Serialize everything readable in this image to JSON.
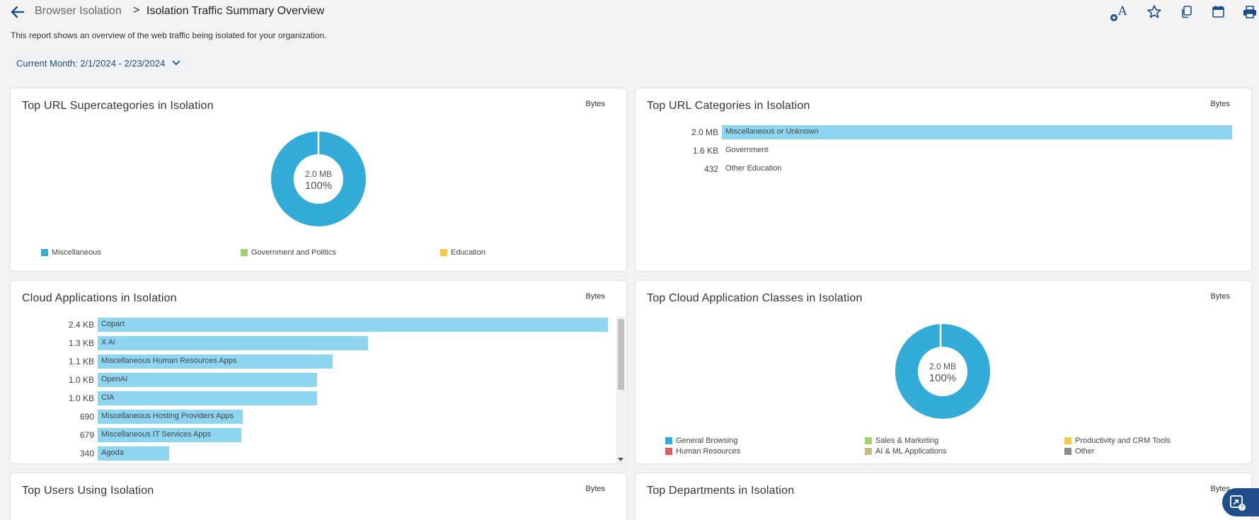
{
  "header": {
    "breadcrumb_parent": "Browser Isolation",
    "breadcrumb_separator": ">",
    "title": "Isolation Traffic Summary Overview",
    "description": "This report shows an overview of the web traffic being isolated for your organization.",
    "date_range": "Current Month: 2/1/2024 - 2/23/2024",
    "toolbar_icons": [
      "font-size-icon",
      "star-icon",
      "copy-icon",
      "calendar-icon",
      "print-icon"
    ]
  },
  "unit_label": "Bytes",
  "cards": {
    "supercategories": {
      "title": "Top URL Supercategories in Isolation",
      "unit": "Bytes",
      "center_value": "2.0 MB",
      "center_percent": "100%",
      "legend": [
        {
          "label": "Miscellaneous",
          "color": "#34acd8"
        },
        {
          "label": "Government and Politics",
          "color": "#9ed36f"
        },
        {
          "label": "Education",
          "color": "#f7c948"
        }
      ]
    },
    "url_categories": {
      "title": "Top URL Categories in Isolation",
      "unit": "Bytes",
      "rows": [
        {
          "value": "2.0 MB",
          "label": "Miscellaneous or Unknown",
          "fraction": 1.0
        },
        {
          "value": "1.6 KB",
          "label": "Government",
          "fraction": 0.0
        },
        {
          "value": "432",
          "label": "Other Education",
          "fraction": 0.0
        }
      ]
    },
    "cloud_apps": {
      "title": "Cloud Applications in Isolation",
      "unit": "Bytes",
      "rows": [
        {
          "value": "2.4 KB",
          "label": "Copart",
          "fraction": 1.0
        },
        {
          "value": "1.3 KB",
          "label": "X Ai",
          "fraction": 0.53
        },
        {
          "value": "1.1 KB",
          "label": "Miscellaneous Human Resources Apps",
          "fraction": 0.46
        },
        {
          "value": "1.0 KB",
          "label": "OpenAI",
          "fraction": 0.43
        },
        {
          "value": "1.0 KB",
          "label": "CIA",
          "fraction": 0.43
        },
        {
          "value": "690",
          "label": "Miscellaneous Hosting Providers Apps",
          "fraction": 0.285
        },
        {
          "value": "679",
          "label": "Miscellaneous IT Services Apps",
          "fraction": 0.281
        },
        {
          "value": "340",
          "label": "Agoda",
          "fraction": 0.14
        }
      ]
    },
    "app_classes": {
      "title": "Top Cloud Application Classes in Isolation",
      "unit": "Bytes",
      "center_value": "2.0 MB",
      "center_percent": "100%",
      "legend": [
        {
          "label": "General Browsing",
          "color": "#34acd8"
        },
        {
          "label": "Sales & Marketing",
          "color": "#9ed36f"
        },
        {
          "label": "Productivity and CRM Tools",
          "color": "#f7c948"
        },
        {
          "label": "Human Resources",
          "color": "#df5a5a"
        },
        {
          "label": "AI & ML Applications",
          "color": "#c2bd7f"
        },
        {
          "label": "Other",
          "color": "#8c8c8c"
        }
      ]
    },
    "top_users": {
      "title": "Top Users Using Isolation",
      "unit": "Bytes"
    },
    "top_departments": {
      "title": "Top Departments in Isolation",
      "unit": "Bytes"
    }
  },
  "colors": {
    "accent": "#1a4f8b",
    "donut": "#34acd8",
    "bar": "#8dd5f1"
  }
}
